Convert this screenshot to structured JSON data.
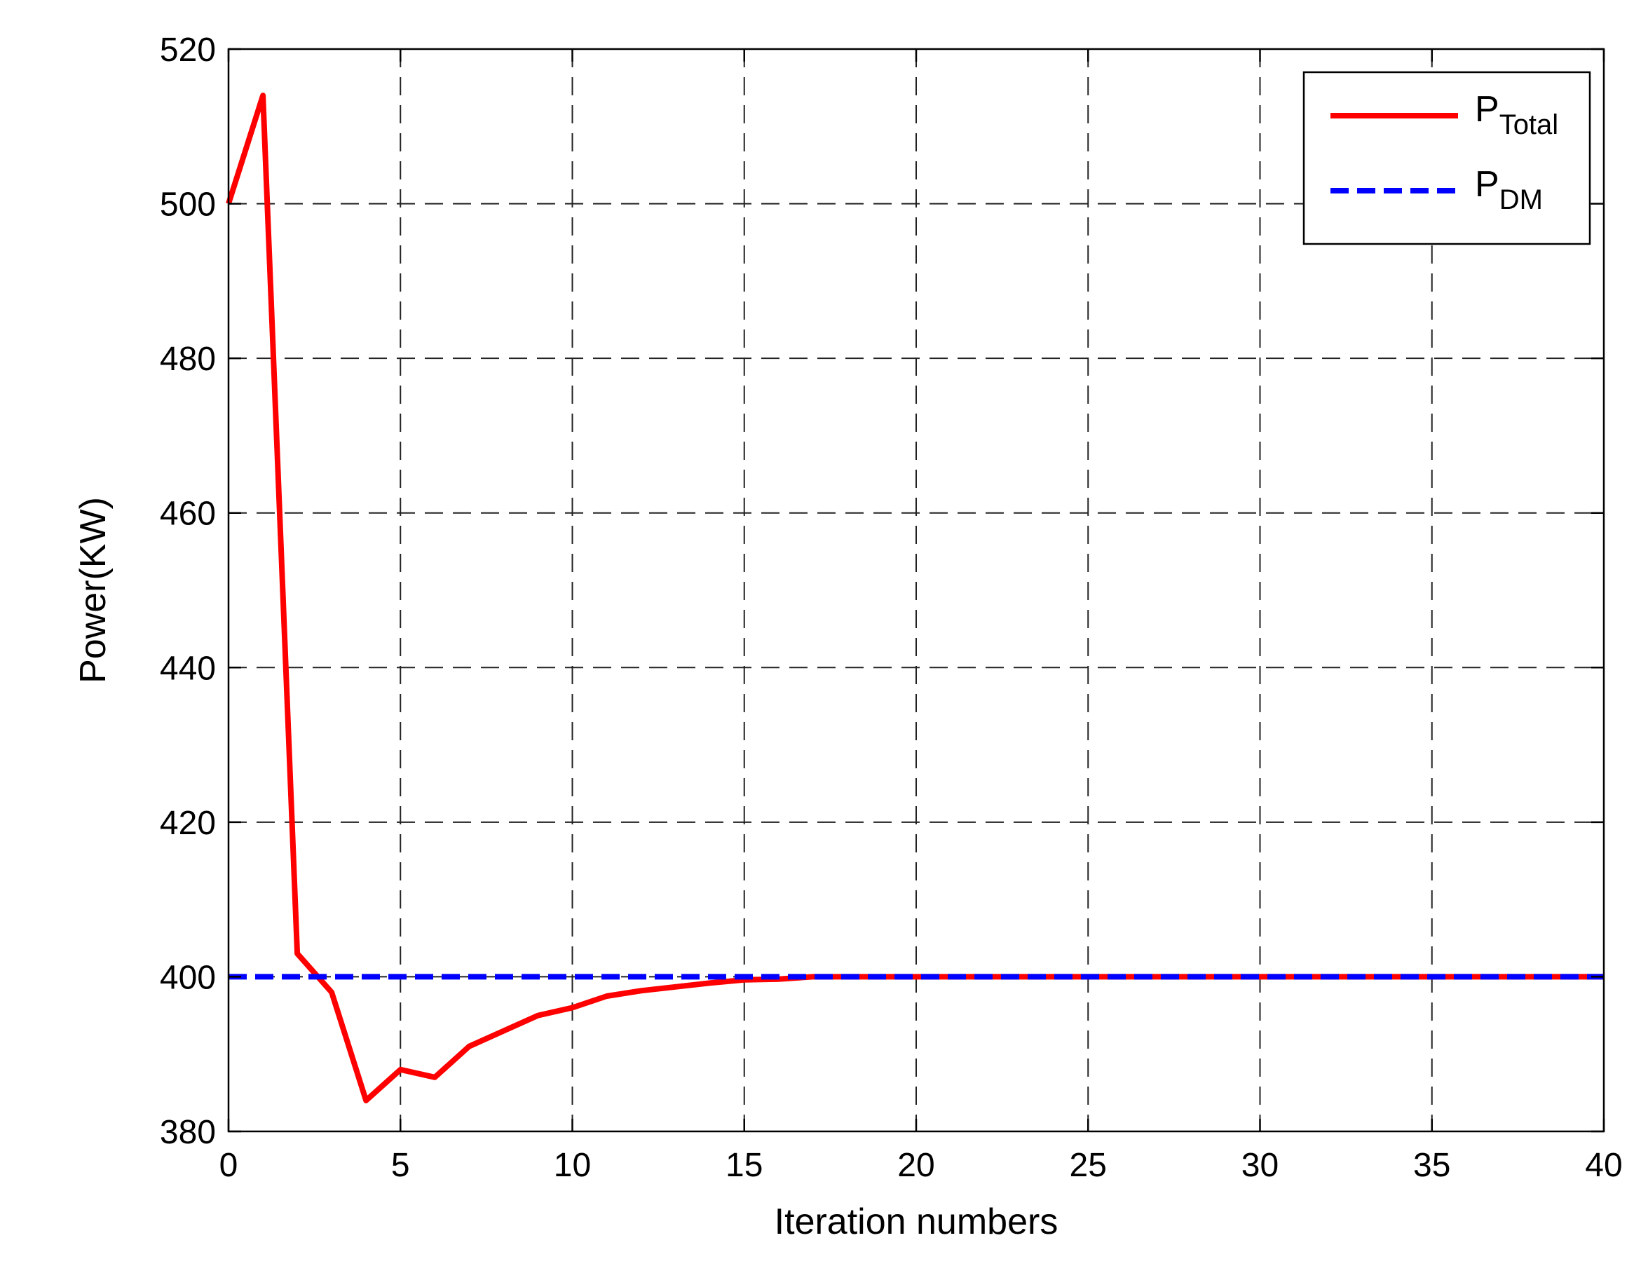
{
  "chart_data": {
    "type": "line",
    "xlabel": "Iteration numbers",
    "ylabel": "Power(KW)",
    "xlim": [
      0,
      40
    ],
    "ylim": [
      380,
      520
    ],
    "xticks": [
      0,
      5,
      10,
      15,
      20,
      25,
      30,
      35,
      40
    ],
    "yticks": [
      380,
      400,
      420,
      440,
      460,
      480,
      500,
      520
    ],
    "grid": true,
    "legend_position": "top-right",
    "series": [
      {
        "name_main": "P",
        "name_sub": "Total",
        "color": "#ff0000",
        "style": "solid",
        "x": [
          0,
          1,
          2,
          3,
          4,
          5,
          6,
          7,
          8,
          9,
          10,
          11,
          12,
          13,
          14,
          15,
          16,
          17,
          18,
          19,
          20,
          25,
          30,
          35,
          40
        ],
        "y": [
          500,
          514,
          403,
          398,
          384,
          388,
          387,
          391,
          393,
          395,
          396,
          397.5,
          398.2,
          398.7,
          399.2,
          399.6,
          399.7,
          400,
          400,
          400,
          400,
          400,
          400,
          400,
          400
        ]
      },
      {
        "name_main": "P",
        "name_sub": "DM",
        "color": "#0000ff",
        "style": "dashed",
        "x": [
          0,
          40
        ],
        "y": [
          400,
          400
        ]
      }
    ]
  }
}
